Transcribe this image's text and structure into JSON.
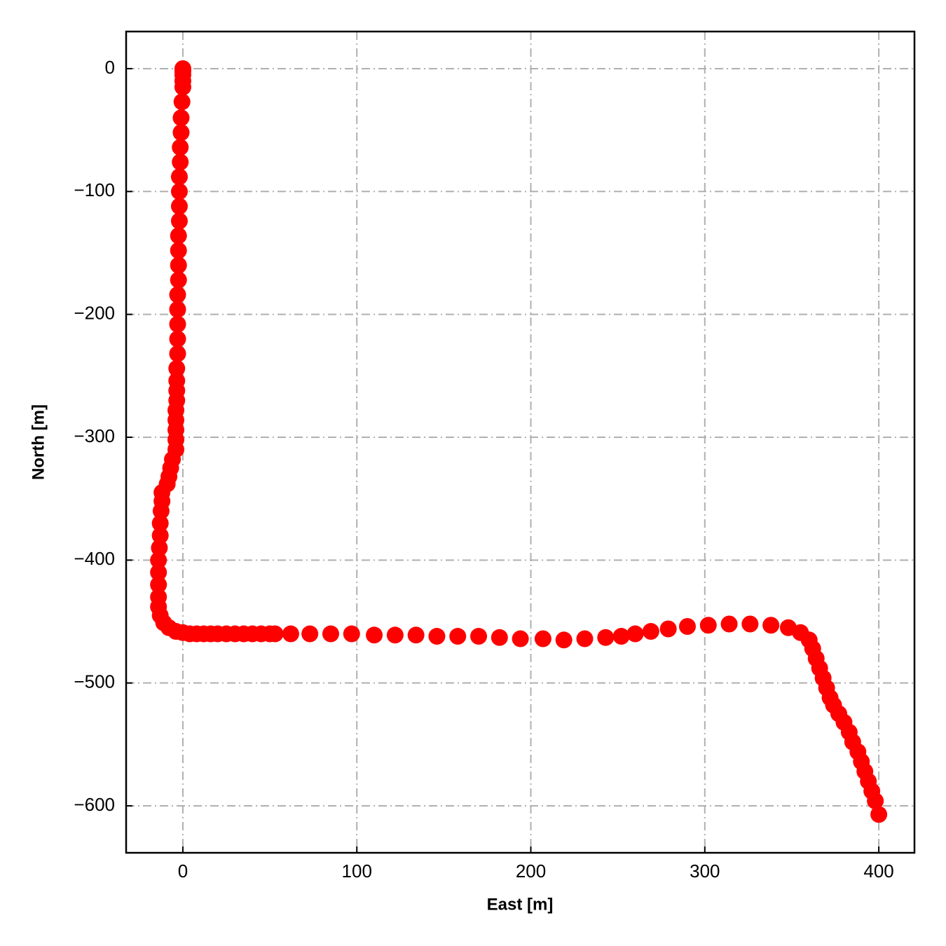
{
  "chart_data": {
    "type": "scatter",
    "xlabel": "East [m]",
    "ylabel": "North [m]",
    "color": "#ff0000",
    "grid": true,
    "xlim": [
      -32.6,
      420.5
    ],
    "ylim": [
      -638.2,
      30.2
    ],
    "xticks": [
      0,
      100,
      200,
      300,
      400
    ],
    "yticks": [
      0,
      {
        "value": -100,
        "label": "−100"
      },
      {
        "value": -200,
        "label": "−200"
      },
      {
        "value": -300,
        "label": "−300"
      },
      {
        "value": -400,
        "label": "−400"
      },
      {
        "value": -500,
        "label": "−500"
      },
      {
        "value": -600,
        "label": "−600"
      }
    ],
    "x": [
      0,
      0,
      0,
      0,
      0,
      -0.5,
      -1,
      -1,
      -1.5,
      -1.5,
      -2,
      -2,
      -2,
      -2,
      -2.5,
      -2.5,
      -2.5,
      -2.5,
      -3,
      -3,
      -3,
      -3,
      -3,
      -3.5,
      -3.5,
      -3.5,
      -3.5,
      -4,
      -4,
      -4,
      -4,
      -4,
      -6,
      -7,
      -8,
      -9,
      -12,
      -12,
      -12.5,
      -13,
      -13,
      -13.5,
      -14,
      -14,
      -14,
      -14,
      -14,
      -13,
      -11,
      -8,
      -4,
      0,
      4,
      8,
      12,
      16,
      20,
      25,
      30,
      35,
      40,
      45,
      50,
      53,
      62,
      73,
      85,
      97,
      110,
      122,
      134,
      146,
      158,
      170,
      182,
      194,
      207,
      219,
      231,
      243,
      252,
      260,
      269,
      279,
      290,
      302,
      314,
      326,
      338,
      348,
      355,
      360,
      362,
      364,
      366,
      368,
      370,
      372,
      374,
      377,
      380,
      383,
      385,
      388,
      390,
      392,
      394,
      396,
      398,
      400
    ],
    "values": [
      0,
      -2,
      -5,
      -10,
      -15,
      -27,
      -40,
      -52,
      -64,
      -76,
      -88,
      -100,
      -112,
      -124,
      -136,
      -148,
      -160,
      -172,
      -184,
      -196,
      -208,
      -220,
      -232,
      -244,
      -254,
      -262,
      -270,
      -278,
      -286,
      -294,
      -302,
      -310,
      -318,
      -325,
      -332,
      -338,
      -345,
      -352,
      -360,
      -370,
      -380,
      -390,
      -400,
      -410,
      -420,
      -430,
      -438,
      -445,
      -451,
      -455,
      -458,
      -459,
      -460,
      -460,
      -460,
      -460,
      -460,
      -460,
      -460,
      -460,
      -460,
      -460,
      -460,
      -460,
      -460,
      -460,
      -460,
      -460,
      -461,
      -461,
      -461,
      -462,
      -462,
      -462,
      -463,
      -464,
      -464,
      -465,
      -464,
      -463,
      -462,
      -460,
      -458,
      -456,
      -454,
      -453,
      -452,
      -452,
      -453,
      -455,
      -459,
      -465,
      -472,
      -480,
      -488,
      -496,
      -504,
      -512,
      -518,
      -525,
      -532,
      -540,
      -548,
      -556,
      -564,
      -572,
      -580,
      -588,
      -596,
      -607
    ]
  }
}
